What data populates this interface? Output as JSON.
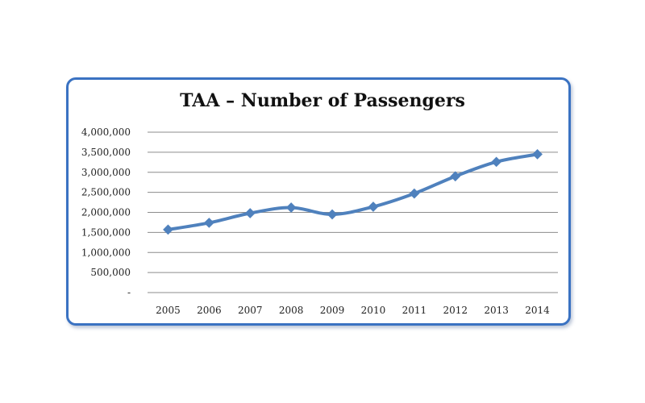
{
  "chart_data": {
    "type": "line",
    "title": "TAA – Number of Passengers",
    "xlabel": "",
    "ylabel": "",
    "categories": [
      "2005",
      "2006",
      "2007",
      "2008",
      "2009",
      "2010",
      "2011",
      "2012",
      "2013",
      "2014"
    ],
    "series": [
      {
        "values": [
          1570000,
          1740000,
          1980000,
          2120000,
          1950000,
          2140000,
          2470000,
          2900000,
          3260000,
          3450000
        ]
      }
    ],
    "ylim": [
      0,
      4000000
    ],
    "y_ticks": [
      0,
      500000,
      1000000,
      1500000,
      2000000,
      2500000,
      3000000,
      3500000,
      4000000
    ],
    "y_tick_labels": [
      "-",
      "500,000",
      "1,000,000",
      "1,500,000",
      "2,000,000",
      "2,500,000",
      "3,000,000",
      "3,500,000",
      "4,000,000"
    ],
    "grid": true,
    "legend": "none",
    "colors": {
      "series": "#4f81bd",
      "frame": "#3a72c2",
      "grid": "#8c8c8c"
    }
  }
}
